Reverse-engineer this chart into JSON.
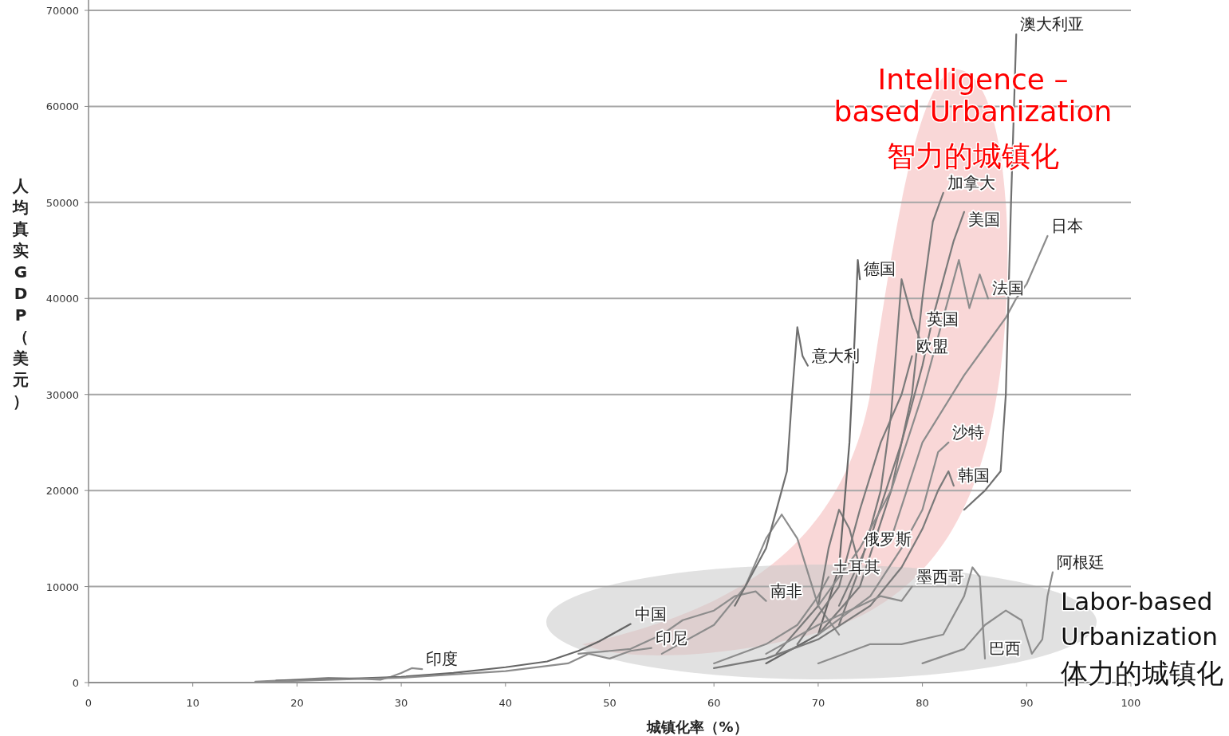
{
  "chart_data": {
    "type": "line",
    "xlabel": "城镇化率（%）",
    "ylabel": "人均真实GDP（美元）",
    "xlim": [
      0,
      100
    ],
    "xticks": [
      0,
      10,
      20,
      30,
      40,
      50,
      60,
      70,
      80,
      90,
      100
    ],
    "ylim": [
      0,
      70000
    ],
    "yticks": [
      0,
      10000,
      20000,
      30000,
      40000,
      50000,
      60000,
      70000
    ],
    "grid": "y",
    "marker": "none",
    "line_style": "solid",
    "annotations": [
      "Intelligence – based Urbanization",
      "智力的城镇化",
      "Labor-based Urbanization",
      "体力的城镇化"
    ],
    "series": [
      {
        "name": "印度",
        "color": "#8c8c8c",
        "x": [
          16,
          20,
          23,
          26,
          28,
          29,
          30,
          31,
          32
        ],
        "values": [
          100,
          300,
          500,
          400,
          300,
          600,
          1000,
          1500,
          1400
        ]
      },
      {
        "name": "中国",
        "color": "#666666",
        "x": [
          18,
          25,
          30,
          35,
          40,
          44,
          47,
          49,
          51,
          52
        ],
        "values": [
          200,
          400,
          600,
          1000,
          1600,
          2200,
          3300,
          4300,
          5500,
          6100
        ]
      },
      {
        "name": "印尼",
        "color": "#8c8c8c",
        "x": [
          17,
          30,
          40,
          46,
          48,
          50,
          52,
          54
        ],
        "values": [
          100,
          500,
          1200,
          2000,
          3000,
          2500,
          3300,
          3600
        ]
      },
      {
        "name": "南非",
        "color": "#8c8c8c",
        "x": [
          47,
          52,
          55,
          57,
          60,
          62,
          64,
          65
        ],
        "values": [
          3000,
          3500,
          5000,
          6500,
          7500,
          9000,
          9500,
          8500
        ]
      },
      {
        "name": null,
        "color": "#8c8c8c",
        "x": [
          55,
          60,
          63,
          65,
          66.5,
          68,
          70,
          72
        ],
        "values": [
          3000,
          6000,
          10000,
          15000,
          17500,
          15000,
          8000,
          5000
        ]
      },
      {
        "name": "意大利",
        "color": "#707070",
        "x": [
          62,
          65,
          66.5,
          67,
          67.5,
          68,
          68.5,
          69
        ],
        "values": [
          8000,
          14000,
          20000,
          22000,
          30000,
          37000,
          34000,
          33000
        ]
      },
      {
        "name": "土耳其",
        "color": "#8c8c8c",
        "x": [
          60,
          65,
          68,
          70,
          71
        ],
        "values": [
          2000,
          4000,
          6000,
          9000,
          11000
        ]
      },
      {
        "name": "俄罗斯",
        "color": "#7a7a7a",
        "x": [
          66,
          70,
          71,
          72,
          73,
          74
        ],
        "values": [
          3000,
          8000,
          14000,
          18000,
          16000,
          12000
        ]
      },
      {
        "name": "德国",
        "color": "#666666",
        "x": [
          65,
          70,
          72,
          73,
          73.5,
          73.8,
          74
        ],
        "values": [
          2000,
          5000,
          12000,
          25000,
          36000,
          44000,
          42000
        ]
      },
      {
        "name": "欧盟",
        "color": "#7a7a7a",
        "x": [
          68,
          72,
          74,
          76,
          78,
          79
        ],
        "values": [
          4000,
          10000,
          18000,
          25000,
          30000,
          34000
        ]
      },
      {
        "name": "英国",
        "color": "#7a7a7a",
        "x": [
          72,
          74,
          76,
          77,
          78,
          79,
          80
        ],
        "values": [
          6000,
          12000,
          20000,
          28000,
          42000,
          38000,
          35000
        ]
      },
      {
        "name": "加拿大",
        "color": "#7a7a7a",
        "x": [
          70,
          74,
          77,
          79,
          80,
          81,
          82
        ],
        "values": [
          5000,
          10000,
          20000,
          30000,
          40000,
          48000,
          51000
        ]
      },
      {
        "name": "美国",
        "color": "#7a7a7a",
        "x": [
          72,
          75,
          78,
          80,
          81,
          82,
          83,
          84
        ],
        "values": [
          8000,
          15000,
          25000,
          33000,
          38000,
          42000,
          46000,
          49000
        ]
      },
      {
        "name": "法国",
        "color": "#8c8c8c",
        "x": [
          70,
          74,
          77,
          80,
          82,
          83.5,
          84.5,
          85.5,
          86.3
        ],
        "values": [
          8000,
          14000,
          20000,
          30000,
          38000,
          44000,
          39000,
          42500,
          40000
        ]
      },
      {
        "name": "日本",
        "color": "#8c8c8c",
        "x": [
          77,
          80,
          84,
          86,
          88,
          89,
          90,
          91,
          92
        ],
        "values": [
          15000,
          25000,
          32000,
          35000,
          38000,
          40000,
          41500,
          44000,
          46500
        ]
      },
      {
        "name": "澳大利亚",
        "color": "#707070",
        "x": [
          84,
          86,
          87.5,
          88,
          88.5,
          89
        ],
        "values": [
          18000,
          20000,
          22000,
          30000,
          50000,
          67500
        ]
      },
      {
        "name": "沙特",
        "color": "#8c8c8c",
        "x": [
          70,
          75,
          78,
          80,
          81.5,
          82.5
        ],
        "values": [
          5000,
          9000,
          14000,
          18000,
          24000,
          25000
        ]
      },
      {
        "name": "韩国",
        "color": "#7a7a7a",
        "x": [
          60,
          65,
          70,
          75,
          78,
          80,
          81.5,
          82.5,
          83
        ],
        "values": [
          1500,
          2500,
          4500,
          8000,
          12000,
          16000,
          20000,
          22000,
          20500
        ]
      },
      {
        "name": "墨西哥",
        "color": "#8c8c8c",
        "x": [
          65,
          70,
          74,
          76,
          78,
          79
        ],
        "values": [
          3000,
          6000,
          8000,
          9000,
          8500,
          10000
        ]
      },
      {
        "name": "巴西",
        "color": "#8c8c8c",
        "x": [
          70,
          75,
          78,
          82,
          84,
          84.8,
          85.5,
          86
        ],
        "values": [
          2000,
          4000,
          4000,
          5000,
          9000,
          12000,
          11000,
          2500
        ]
      },
      {
        "name": "阿根廷",
        "color": "#8c8c8c",
        "x": [
          80,
          84,
          86,
          88,
          89.5,
          90.5,
          91.5,
          92,
          92.5
        ],
        "values": [
          2000,
          3500,
          6000,
          7500,
          6500,
          3000,
          4500,
          9000,
          11500
        ]
      }
    ]
  }
}
